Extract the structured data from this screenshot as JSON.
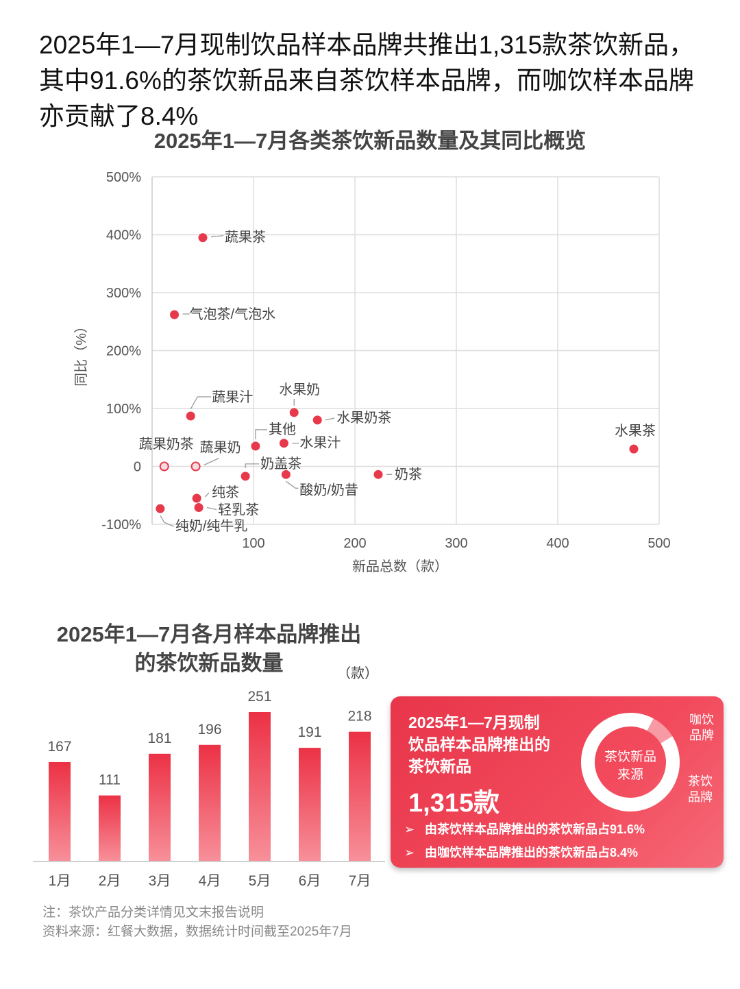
{
  "headline": "2025年1—7月现制饮品样本品牌共推出1,315款茶饮新品，其中91.6%的茶饮新品来自茶饮样本品牌，而咖饮样本品牌亦贡献了8.4%",
  "colors": {
    "accent": "#e8394b",
    "grid": "#dddddd"
  },
  "chart_data": [
    {
      "type": "scatter",
      "title": "2025年1—7月各类茶饮新品数量及其同比概览",
      "xlabel": "新品总数（款）",
      "ylabel": "同比（%）",
      "xlim": [
        0,
        500
      ],
      "ylim": [
        -100,
        500
      ],
      "xticks": [
        "100",
        "200",
        "300",
        "400",
        "500"
      ],
      "yticks": [
        "500%",
        "400%",
        "300%",
        "200%",
        "100%",
        "0",
        "-100%"
      ],
      "grid": true,
      "points": [
        {
          "label": "蔬果茶",
          "x": 50,
          "y": 395,
          "hollow": false
        },
        {
          "label": "气泡茶/气泡水",
          "x": 22,
          "y": 262,
          "hollow": false
        },
        {
          "label": "蔬果汁",
          "x": 38,
          "y": 87,
          "hollow": false
        },
        {
          "label": "水果奶",
          "x": 140,
          "y": 93,
          "hollow": false
        },
        {
          "label": "水果奶茶",
          "x": 163,
          "y": 80,
          "hollow": false
        },
        {
          "label": "其他",
          "x": 102,
          "y": 35,
          "hollow": false
        },
        {
          "label": "水果汁",
          "x": 130,
          "y": 40,
          "hollow": false
        },
        {
          "label": "奶盖茶",
          "x": 92,
          "y": -17,
          "hollow": false
        },
        {
          "label": "酸奶/奶昔",
          "x": 132,
          "y": -14,
          "hollow": false
        },
        {
          "label": "奶茶",
          "x": 223,
          "y": -14,
          "hollow": false
        },
        {
          "label": "蔬果奶茶",
          "x": 12,
          "y": 0,
          "hollow": true
        },
        {
          "label": "蔬果奶",
          "x": 43,
          "y": 0,
          "hollow": true
        },
        {
          "label": "纯茶",
          "x": 44,
          "y": -55,
          "hollow": false
        },
        {
          "label": "轻乳茶",
          "x": 46,
          "y": -71,
          "hollow": false
        },
        {
          "label": "纯奶/纯牛乳",
          "x": 8,
          "y": -73,
          "hollow": false
        },
        {
          "label": "水果茶",
          "x": 475,
          "y": 30,
          "hollow": false
        }
      ]
    },
    {
      "type": "bar",
      "title": "2025年1—7月各月样本品牌推出的茶饮新品数量",
      "unit": "（款）",
      "categories": [
        "1月",
        "2月",
        "3月",
        "4月",
        "5月",
        "6月",
        "7月"
      ],
      "values": [
        167,
        111,
        181,
        196,
        251,
        191,
        218
      ]
    },
    {
      "type": "pie",
      "center_label": "茶饮新品来源",
      "slices": [
        {
          "name": "茶饮品牌",
          "value": 91.6
        },
        {
          "name": "咖饮品牌",
          "value": 8.4
        }
      ]
    }
  ],
  "bar_title_lines": [
    "2025年1—7月各月样本品牌推出",
    "的茶饮新品数量"
  ],
  "card": {
    "title_lines": [
      "2025年1—7月现制",
      "饮品样本品牌推出的",
      "茶饮新品"
    ],
    "total": "1,315款",
    "donut_center_lines": [
      "茶饮新品",
      "来源"
    ],
    "label_coffee_lines": [
      "咖饮",
      "品牌"
    ],
    "label_tea_lines": [
      "茶饮",
      "品牌"
    ],
    "bullet_marker": "➢",
    "bullets": [
      "由茶饮样本品牌推出的茶饮新品占91.6%",
      "由咖饮样本品牌推出的茶饮新品占8.4%"
    ]
  },
  "notes": [
    "注：茶饮产品分类详情见文末报告说明",
    "资料来源：红餐大数据，数据统计时间截至2025年7月"
  ]
}
